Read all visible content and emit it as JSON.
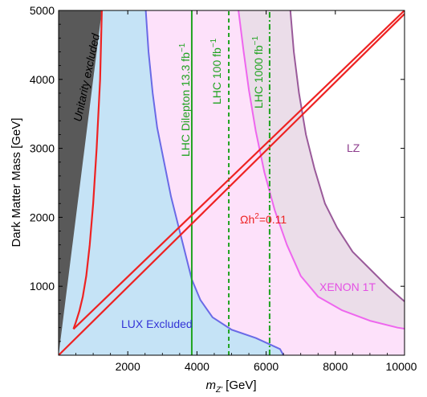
{
  "chart_data": {
    "type": "line",
    "xlabel": "m_{Z'} [GeV]",
    "xlabel_parts": {
      "prefix": "m",
      "sub": "Z'",
      "suffix": " [GeV]"
    },
    "ylabel": "Dark Matter Mass [GeV]",
    "xlim": [
      0,
      10000
    ],
    "ylim": [
      0,
      5000
    ],
    "x_ticks": [
      2000,
      4000,
      6000,
      8000,
      10000
    ],
    "x_tick_labels": [
      "2000",
      "4000",
      "6000",
      "8000",
      "10000"
    ],
    "y_ticks": [
      1000,
      2000,
      3000,
      4000,
      5000
    ],
    "y_tick_labels": [
      "1000",
      "2000",
      "3000",
      "4000",
      "5000"
    ],
    "grid": false,
    "legend": "none",
    "regions": [
      {
        "name": "Unitarity excluded",
        "color": "#595959",
        "boundary": [
          [
            0,
            0
          ],
          [
            1250,
            5000
          ]
        ]
      },
      {
        "name": "LUX Excluded",
        "color": "#c5e3f6",
        "edge_color": "#6a6ae6",
        "boundary": [
          [
            2520,
            5000
          ],
          [
            2600,
            4400
          ],
          [
            2720,
            3800
          ],
          [
            2850,
            3300
          ],
          [
            3050,
            2800
          ],
          [
            3250,
            2300
          ],
          [
            3450,
            1900
          ],
          [
            3650,
            1500
          ],
          [
            3850,
            1100
          ],
          [
            4100,
            800
          ],
          [
            4450,
            550
          ],
          [
            5000,
            370
          ],
          [
            5700,
            250
          ],
          [
            6400,
            90
          ],
          [
            6500,
            0
          ]
        ]
      },
      {
        "name": "XENON 1T",
        "color": "#fde1fa",
        "edge_color": "#ee66ee",
        "boundary": [
          [
            5200,
            5000
          ],
          [
            5350,
            4400
          ],
          [
            5500,
            3850
          ],
          [
            5700,
            3250
          ],
          [
            5950,
            2650
          ],
          [
            6250,
            2100
          ],
          [
            6600,
            1600
          ],
          [
            7000,
            1150
          ],
          [
            7500,
            850
          ],
          [
            8200,
            650
          ],
          [
            9000,
            500
          ],
          [
            9800,
            400
          ],
          [
            10000,
            385
          ]
        ]
      },
      {
        "name": "LZ",
        "color": "#ebdde9",
        "edge_color": "#9a5a9a",
        "boundary": [
          [
            6700,
            5000
          ],
          [
            6800,
            4400
          ],
          [
            6950,
            3800
          ],
          [
            7150,
            3200
          ],
          [
            7400,
            2700
          ],
          [
            7700,
            2200
          ],
          [
            8050,
            1850
          ],
          [
            8500,
            1500
          ],
          [
            9000,
            1250
          ],
          [
            9500,
            1000
          ],
          [
            10000,
            780
          ]
        ]
      }
    ],
    "series": [
      {
        "name": "LHC Dilepton 13.3 fb^-1",
        "color": "#1fa31f",
        "dash": "solid",
        "x": [
          3850,
          3850
        ],
        "y": [
          0,
          5000
        ]
      },
      {
        "name": "LHC 100 fb^-1",
        "color": "#1fa31f",
        "dash": "dashed",
        "x": [
          4920,
          4920
        ],
        "y": [
          0,
          5000
        ]
      },
      {
        "name": "LHC 1000 fb^-1",
        "color": "#1fa31f",
        "dash": "dashdot",
        "x": [
          6100,
          6100
        ],
        "y": [
          0,
          5000
        ]
      },
      {
        "name": "Ωh²=0.11 (left branch)",
        "color": "#ee2222",
        "x": [
          1250,
          1200,
          1100,
          1000,
          900,
          800,
          700,
          600,
          500,
          430
        ],
        "y": [
          5000,
          4000,
          3000,
          2200,
          1600,
          1150,
          850,
          640,
          480,
          380
        ]
      },
      {
        "name": "Ωh²=0.11 (upper line)",
        "color": "#ee2222",
        "x": [
          430,
          10000
        ],
        "y": [
          380,
          5000
        ]
      },
      {
        "name": "Ωh²=0.11 (lower line)",
        "color": "#ee2222",
        "x": [
          0,
          10000
        ],
        "y": [
          0,
          4950
        ]
      }
    ],
    "annotations": [
      {
        "text": "Unitarity excluded",
        "color": "#000000",
        "italic": true
      },
      {
        "text": "LHC Dilepton 13.3 fb",
        "sup": "−1",
        "color": "#1fa31f"
      },
      {
        "text": "LHC 100 fb",
        "sup": "−1",
        "color": "#1fa31f"
      },
      {
        "text": "LHC 1000 fb",
        "sup": "−1",
        "color": "#1fa31f"
      },
      {
        "text": "LZ",
        "color": "#8e3e8e"
      },
      {
        "text": "Ωh",
        "sup": "2",
        "suffix": "=0.11",
        "color": "#ee2222"
      },
      {
        "text": "XENON 1T",
        "color": "#e44fe4"
      },
      {
        "text": "LUX Excluded",
        "color": "#3333d6"
      }
    ]
  }
}
